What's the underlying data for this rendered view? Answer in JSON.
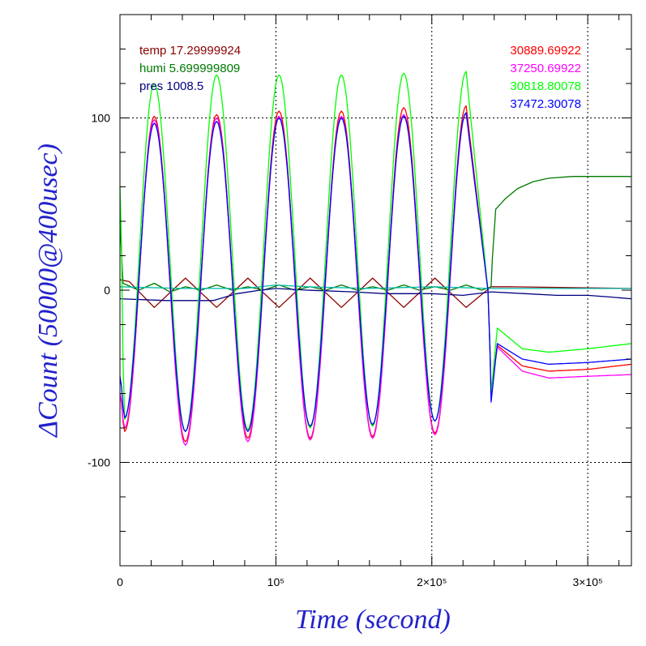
{
  "chart_data": {
    "type": "line",
    "xlabel": "Time (second)",
    "ylabel": "ΔCount (50000@400usec)",
    "xlim": [
      0,
      328000
    ],
    "ylim": [
      -160,
      160
    ],
    "x_ticks": [
      {
        "value": 0,
        "label": "0"
      },
      {
        "value": 100000,
        "label": "10⁵"
      },
      {
        "value": 200000,
        "label": "2×10⁵"
      },
      {
        "value": 300000,
        "label": "3×10⁵"
      }
    ],
    "y_ticks": [
      {
        "value": 100,
        "label": "100"
      },
      {
        "value": 0,
        "label": "0"
      },
      {
        "value": -100,
        "label": "-100"
      }
    ],
    "grid": true,
    "legend_left": [
      {
        "label": "temp 17.29999924",
        "color": "#8b0000"
      },
      {
        "label": "humi 5.699999809",
        "color": "#007a00"
      },
      {
        "label": "pres 1008.5",
        "color": "#000080"
      }
    ],
    "legend_right": [
      {
        "label": "30889.69922",
        "color": "#ff0000"
      },
      {
        "label": "37250.69922",
        "color": "#ff00ff"
      },
      {
        "label": "30818.80078",
        "color": "#00ff00"
      },
      {
        "label": "37472.30078",
        "color": "#0000ff"
      }
    ],
    "peaks_x": [
      22000,
      62000,
      102000,
      142000,
      182000,
      222000
    ],
    "troughs_x": [
      3000,
      42000,
      82000,
      122000,
      162000,
      202000
    ],
    "step_x": 238000,
    "series": [
      {
        "color": "#ff0000",
        "start_value": -60,
        "peaks": [
          101,
          102,
          104,
          104,
          106,
          107
        ],
        "troughs": [
          -82,
          -88,
          -86,
          -86,
          -85,
          -83
        ],
        "step_min": -60,
        "after": [
          [
            242000,
            -32
          ],
          [
            258000,
            -44
          ],
          [
            275000,
            -47
          ],
          [
            300000,
            -46
          ],
          [
            328000,
            -43
          ]
        ]
      },
      {
        "color": "#ff00ff",
        "start_value": -60,
        "peaks": [
          99,
          100,
          101,
          101,
          102,
          103
        ],
        "troughs": [
          -80,
          -90,
          -88,
          -87,
          -86,
          -84
        ],
        "step_min": -60,
        "after": [
          [
            242000,
            -33
          ],
          [
            258000,
            -47
          ],
          [
            275000,
            -51
          ],
          [
            300000,
            -50
          ],
          [
            328000,
            -49
          ]
        ]
      },
      {
        "color": "#00ff00",
        "start_value": 60,
        "peaks": [
          120,
          125,
          125,
          125,
          126,
          127
        ],
        "troughs": [
          -75,
          -82,
          -81,
          -80,
          -79,
          -76
        ],
        "step_min": -60,
        "after": [
          [
            242000,
            -22
          ],
          [
            258000,
            -34
          ],
          [
            275000,
            -36
          ],
          [
            300000,
            -34
          ],
          [
            328000,
            -31
          ]
        ]
      },
      {
        "color": "#0000ff",
        "start_value": -50,
        "peaks": [
          97,
          98,
          100,
          100,
          101,
          103
        ],
        "troughs": [
          -74,
          -82,
          -82,
          -79,
          -78,
          -76
        ],
        "step_min": -65,
        "after": [
          [
            242000,
            -31
          ],
          [
            258000,
            -40
          ],
          [
            275000,
            -43
          ],
          [
            300000,
            -42
          ],
          [
            328000,
            -40
          ]
        ]
      },
      {
        "color": "#8b0000",
        "segments": [
          [
            0,
            6
          ],
          [
            6000,
            5
          ],
          [
            22000,
            -10
          ],
          [
            42000,
            7
          ],
          [
            62000,
            -10
          ],
          [
            82000,
            7
          ],
          [
            102000,
            -10
          ],
          [
            122000,
            7
          ],
          [
            142000,
            -10
          ],
          [
            162000,
            7
          ],
          [
            182000,
            -10
          ],
          [
            202000,
            7
          ],
          [
            222000,
            -10
          ],
          [
            238000,
            2
          ],
          [
            250000,
            2
          ],
          [
            328000,
            1
          ]
        ]
      },
      {
        "color": "#007a00",
        "segments": [
          [
            0,
            40
          ],
          [
            2000,
            4
          ],
          [
            12000,
            0
          ],
          [
            22000,
            4
          ],
          [
            32000,
            -1
          ],
          [
            42000,
            2
          ],
          [
            52000,
            0
          ],
          [
            62000,
            3
          ],
          [
            72000,
            0
          ],
          [
            82000,
            2
          ],
          [
            92000,
            0
          ],
          [
            102000,
            3
          ],
          [
            112000,
            0
          ],
          [
            122000,
            2
          ],
          [
            132000,
            0
          ],
          [
            142000,
            3
          ],
          [
            152000,
            0
          ],
          [
            162000,
            2
          ],
          [
            172000,
            0
          ],
          [
            182000,
            3
          ],
          [
            192000,
            0
          ],
          [
            202000,
            2
          ],
          [
            212000,
            0
          ],
          [
            222000,
            3
          ],
          [
            232000,
            0
          ],
          [
            238000,
            2
          ],
          [
            238800,
            18
          ],
          [
            241000,
            47
          ],
          [
            247000,
            53
          ],
          [
            255000,
            59
          ],
          [
            265000,
            63
          ],
          [
            275000,
            65
          ],
          [
            290000,
            66
          ],
          [
            310000,
            66
          ],
          [
            328000,
            66
          ]
        ]
      },
      {
        "color": "#000080",
        "segments": [
          [
            0,
            -5
          ],
          [
            30000,
            -6
          ],
          [
            60000,
            -6
          ],
          [
            75000,
            -2
          ],
          [
            90000,
            0
          ],
          [
            100000,
            1
          ],
          [
            120000,
            0
          ],
          [
            150000,
            -1
          ],
          [
            170000,
            -2
          ],
          [
            200000,
            -2
          ],
          [
            220000,
            -3
          ],
          [
            238000,
            -1
          ],
          [
            260000,
            -2
          ],
          [
            280000,
            -3
          ],
          [
            300000,
            -3
          ],
          [
            315000,
            -4
          ],
          [
            328000,
            -5
          ]
        ]
      },
      {
        "color": "#00bbaa",
        "segments": [
          [
            0,
            2
          ],
          [
            40000,
            1
          ],
          [
            80000,
            1
          ],
          [
            100000,
            3
          ],
          [
            120000,
            2
          ],
          [
            160000,
            1
          ],
          [
            200000,
            2
          ],
          [
            238000,
            1
          ],
          [
            280000,
            1
          ],
          [
            328000,
            1
          ]
        ]
      }
    ]
  }
}
